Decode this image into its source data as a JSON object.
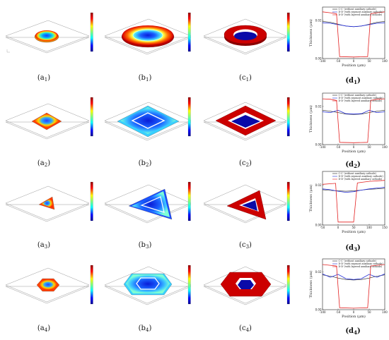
{
  "captions": [
    {
      "main": "(a",
      "sub": "1",
      "end": ")"
    },
    {
      "main": "(b",
      "sub": "1",
      "end": ")"
    },
    {
      "main": "(c",
      "sub": "1",
      "end": ")"
    },
    {
      "main": "(d",
      "sub": "1",
      "end": ")"
    },
    {
      "main": "(a",
      "sub": "2",
      "end": ")"
    },
    {
      "main": "(b",
      "sub": "2",
      "end": ")"
    },
    {
      "main": "(c",
      "sub": "2",
      "end": ")"
    },
    {
      "main": "(d",
      "sub": "2",
      "end": ")"
    },
    {
      "main": "(a",
      "sub": "3",
      "end": ")"
    },
    {
      "main": "(b",
      "sub": "3",
      "end": ")"
    },
    {
      "main": "(c",
      "sub": "3",
      "end": ")"
    },
    {
      "main": "(d",
      "sub": "3",
      "end": ")"
    },
    {
      "main": "(a",
      "sub": "4",
      "end": ")"
    },
    {
      "main": "(b",
      "sub": "4",
      "end": ")"
    },
    {
      "main": "(c",
      "sub": "4",
      "end": ")"
    },
    {
      "main": "(d",
      "sub": "4",
      "end": ")"
    }
  ],
  "colors": {
    "cc": "#222222",
    "dd_sep": "#1f2ad6",
    "dd_lay": "#e32222"
  },
  "chart_data": [
    {
      "type": "line",
      "xlabel": "Position (μm)",
      "ylabel": "Thickness (μm)",
      "xlim": [
        -100,
        100
      ],
      "ylim": [
        0,
        0.027
      ],
      "xticks": [
        "-100",
        "-50",
        "0",
        "50",
        "100"
      ],
      "yticks": [
        "0.00",
        "0.02"
      ],
      "legend": [
        "C-C' (without auxiliary cathode)",
        "D-D' (with sepmost auxiliary cathode)",
        "D-D' (with layered auxiliary cathode)"
      ],
      "series": [
        {
          "name": "C-C' (without auxiliary cathode)",
          "x": [
            -100,
            -75,
            -50,
            -25,
            0,
            25,
            50,
            75,
            100
          ],
          "y": [
            0.0195,
            0.019,
            0.018,
            0.017,
            0.0167,
            0.017,
            0.018,
            0.019,
            0.0195
          ]
        },
        {
          "name": "D-D' (with sepmost auxiliary cathode)",
          "x": [
            -100,
            -75,
            -50,
            -25,
            0,
            25,
            50,
            75,
            100
          ],
          "y": [
            0.0188,
            0.0185,
            0.0178,
            0.0171,
            0.0167,
            0.0171,
            0.0178,
            0.0185,
            0.0188
          ]
        },
        {
          "name": "D-D' (with layered auxiliary cathode)",
          "x": [
            -100,
            -75,
            -55,
            -45,
            0,
            45,
            55,
            75,
            100
          ],
          "y": [
            0.0245,
            0.024,
            0.0235,
            0.001,
            0.0008,
            0.001,
            0.0235,
            0.024,
            0.0245
          ]
        }
      ]
    },
    {
      "type": "line",
      "xlabel": "Position (μm)",
      "ylabel": "Thickness (μm)",
      "xlim": [
        -100,
        100
      ],
      "ylim": [
        0,
        0.027
      ],
      "xticks": [
        "-100",
        "-50",
        "0",
        "50",
        "100"
      ],
      "yticks": [
        "0.00",
        "0.02"
      ],
      "legend": [
        "C-C' (without auxiliary cathode)",
        "D-D' (with sepmost auxiliary cathode)",
        "D-D' (with layered auxiliary cathode)"
      ],
      "series": [
        {
          "name": "C-C' (without auxiliary cathode)",
          "x": [
            -100,
            -75,
            -50,
            -25,
            0,
            25,
            50,
            75,
            100
          ],
          "y": [
            0.018,
            0.0175,
            0.0168,
            0.016,
            0.0158,
            0.016,
            0.0168,
            0.0175,
            0.018
          ]
        },
        {
          "name": "D-D' (with sepmost auxiliary cathode)",
          "x": [
            -100,
            -75,
            -50,
            -25,
            0,
            25,
            50,
            75,
            100
          ],
          "y": [
            0.0172,
            0.0168,
            0.018,
            0.0162,
            0.016,
            0.0162,
            0.018,
            0.0168,
            0.0172
          ]
        },
        {
          "name": "D-D' (with layered auxiliary cathode)",
          "x": [
            -100,
            -75,
            -55,
            -45,
            0,
            45,
            55,
            75,
            100
          ],
          "y": [
            0.024,
            0.0238,
            0.0232,
            0.0012,
            0.001,
            0.0012,
            0.0232,
            0.0238,
            0.024
          ]
        }
      ]
    },
    {
      "type": "line",
      "xlabel": "Position (μm)",
      "ylabel": "Thickness (μm)",
      "xlim": [
        -50,
        150
      ],
      "ylim": [
        0,
        0.027
      ],
      "xticks": [
        "-50",
        "0",
        "50",
        "100",
        "150"
      ],
      "yticks": [
        "0.00",
        "0.02"
      ],
      "legend": [
        "C-C' (without auxiliary cathode)",
        "D-D' (with sepmost auxiliary cathode)",
        "D-D' (with layered auxiliary cathode)"
      ],
      "series": [
        {
          "name": "C-C' (without auxiliary cathode)",
          "x": [
            -50,
            -25,
            0,
            25,
            50,
            75,
            100,
            125,
            150
          ],
          "y": [
            0.0178,
            0.0174,
            0.0172,
            0.017,
            0.0172,
            0.0176,
            0.018,
            0.0182,
            0.0185
          ]
        },
        {
          "name": "D-D' (with sepmost auxiliary cathode)",
          "x": [
            -50,
            -25,
            0,
            25,
            50,
            75,
            100,
            125,
            150
          ],
          "y": [
            0.0182,
            0.0178,
            0.017,
            0.0165,
            0.0168,
            0.0176,
            0.0182,
            0.0186,
            0.019
          ]
        },
        {
          "name": "D-D' (with layered auxiliary cathode)",
          "x": [
            -50,
            -25,
            -8,
            0,
            50,
            62,
            75,
            100,
            150
          ],
          "y": [
            0.0205,
            0.0208,
            0.021,
            0.0015,
            0.0015,
            0.0212,
            0.0215,
            0.022,
            0.0225
          ]
        }
      ]
    },
    {
      "type": "line",
      "xlabel": "Position (μm)",
      "ylabel": "Thickness (μm)",
      "xlim": [
        -100,
        100
      ],
      "ylim": [
        0,
        0.027
      ],
      "xticks": [
        "-100",
        "-50",
        "0",
        "50",
        "100"
      ],
      "yticks": [
        "0.00",
        "0.02"
      ],
      "legend": [
        "C-C' (without auxiliary cathode)",
        "D-D' (with sepmost auxiliary cathode)",
        "D-D' (with layered auxiliary cathode)"
      ],
      "series": [
        {
          "name": "C-C' (without auxiliary cathode)",
          "x": [
            -100,
            -75,
            -50,
            -25,
            0,
            25,
            50,
            75,
            100
          ],
          "y": [
            0.0185,
            0.0178,
            0.0168,
            0.016,
            0.0158,
            0.016,
            0.0168,
            0.0178,
            0.0185
          ]
        },
        {
          "name": "D-D' (with sepmost auxiliary cathode)",
          "x": [
            -100,
            -75,
            -50,
            -25,
            0,
            25,
            50,
            75,
            100
          ],
          "y": [
            0.019,
            0.0172,
            0.0188,
            0.0165,
            0.016,
            0.0165,
            0.0188,
            0.0172,
            0.019
          ]
        },
        {
          "name": "D-D' (with layered auxiliary cathode)",
          "x": [
            -100,
            -75,
            -55,
            -45,
            0,
            45,
            55,
            75,
            100
          ],
          "y": [
            0.024,
            0.0236,
            0.0232,
            0.001,
            0.0008,
            0.001,
            0.0232,
            0.0236,
            0.024
          ]
        }
      ]
    }
  ]
}
